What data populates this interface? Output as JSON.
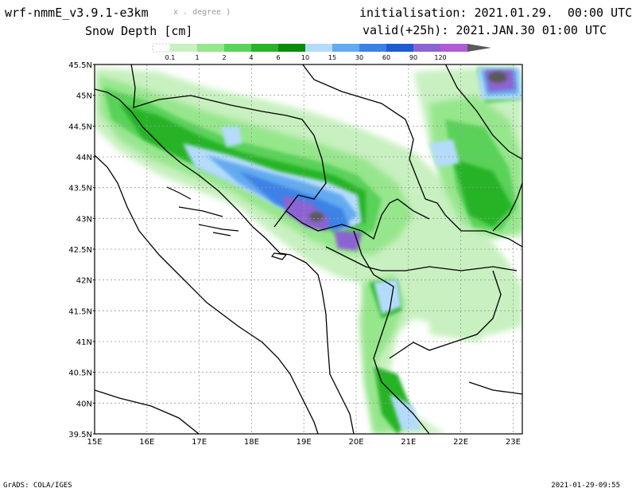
{
  "header": {
    "model": "wrf-nmmE_v3.9.1-e3km",
    "model_sub": "x . degree )",
    "variable": "Snow Depth [cm]",
    "initialisation": "initialisation: 2021.01.29.  00:00 UTC",
    "valid": "valid(+25h): 2021.JAN.30 01:00 UTC"
  },
  "legend": {
    "levels": [
      "0.1",
      "1",
      "2",
      "4",
      "6",
      "10",
      "15",
      "30",
      "60",
      "90",
      "120"
    ],
    "colors": [
      "#ffffff",
      "#c8f0c0",
      "#96e68c",
      "#5ad25a",
      "#28b428",
      "#0a8c0a",
      "#b4dcfa",
      "#64aaf0",
      "#3c82e6",
      "#1e5ad2",
      "#8c64d2",
      "#b45ad2",
      "#5a5a5a"
    ]
  },
  "map": {
    "lat_labels": [
      "45.5N",
      "45N",
      "44.5N",
      "44N",
      "43.5N",
      "43N",
      "42.5N",
      "42N",
      "41.5N",
      "41N",
      "40.5N",
      "40N",
      "39.5N"
    ],
    "lon_labels": [
      "15E",
      "16E",
      "17E",
      "18E",
      "19E",
      "20E",
      "21E",
      "22E",
      "23E"
    ]
  },
  "footer": {
    "source": "GrADS: COLA/IGES",
    "timestamp": "2021-01-29-09:55"
  }
}
